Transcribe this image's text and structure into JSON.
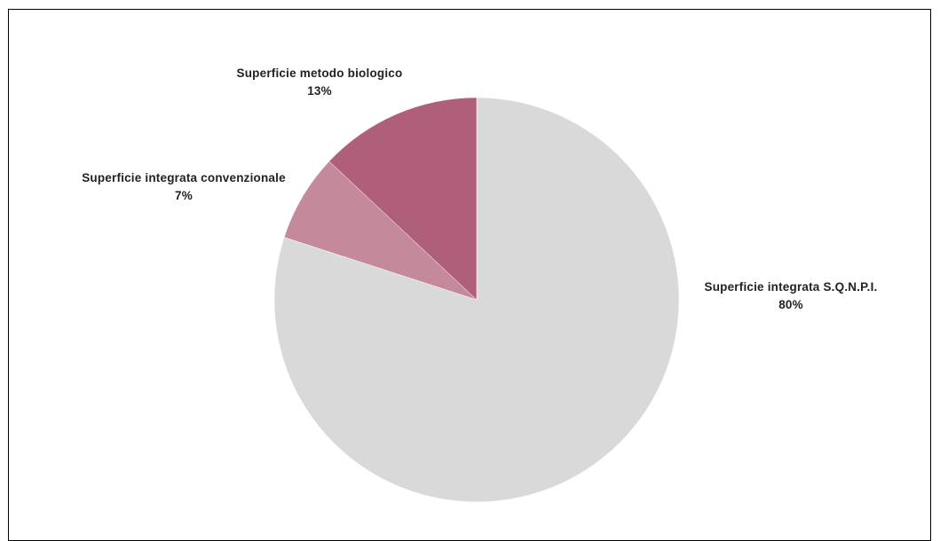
{
  "chart_data": {
    "type": "pie",
    "title": "",
    "start_angle_deg": 0,
    "direction": "clockwise",
    "slices": [
      {
        "label": "Superficie integrata S.Q.N.P.I.",
        "value": 80,
        "value_label": "80%",
        "color": "#d9d9d9"
      },
      {
        "label": "Superficie integrata convenzionale",
        "value": 7,
        "value_label": "7%",
        "color": "#c4899b"
      },
      {
        "label": "Superficie metodo biologico",
        "value": 13,
        "value_label": "13%",
        "color": "#b05f7a"
      }
    ],
    "legend": "none"
  }
}
